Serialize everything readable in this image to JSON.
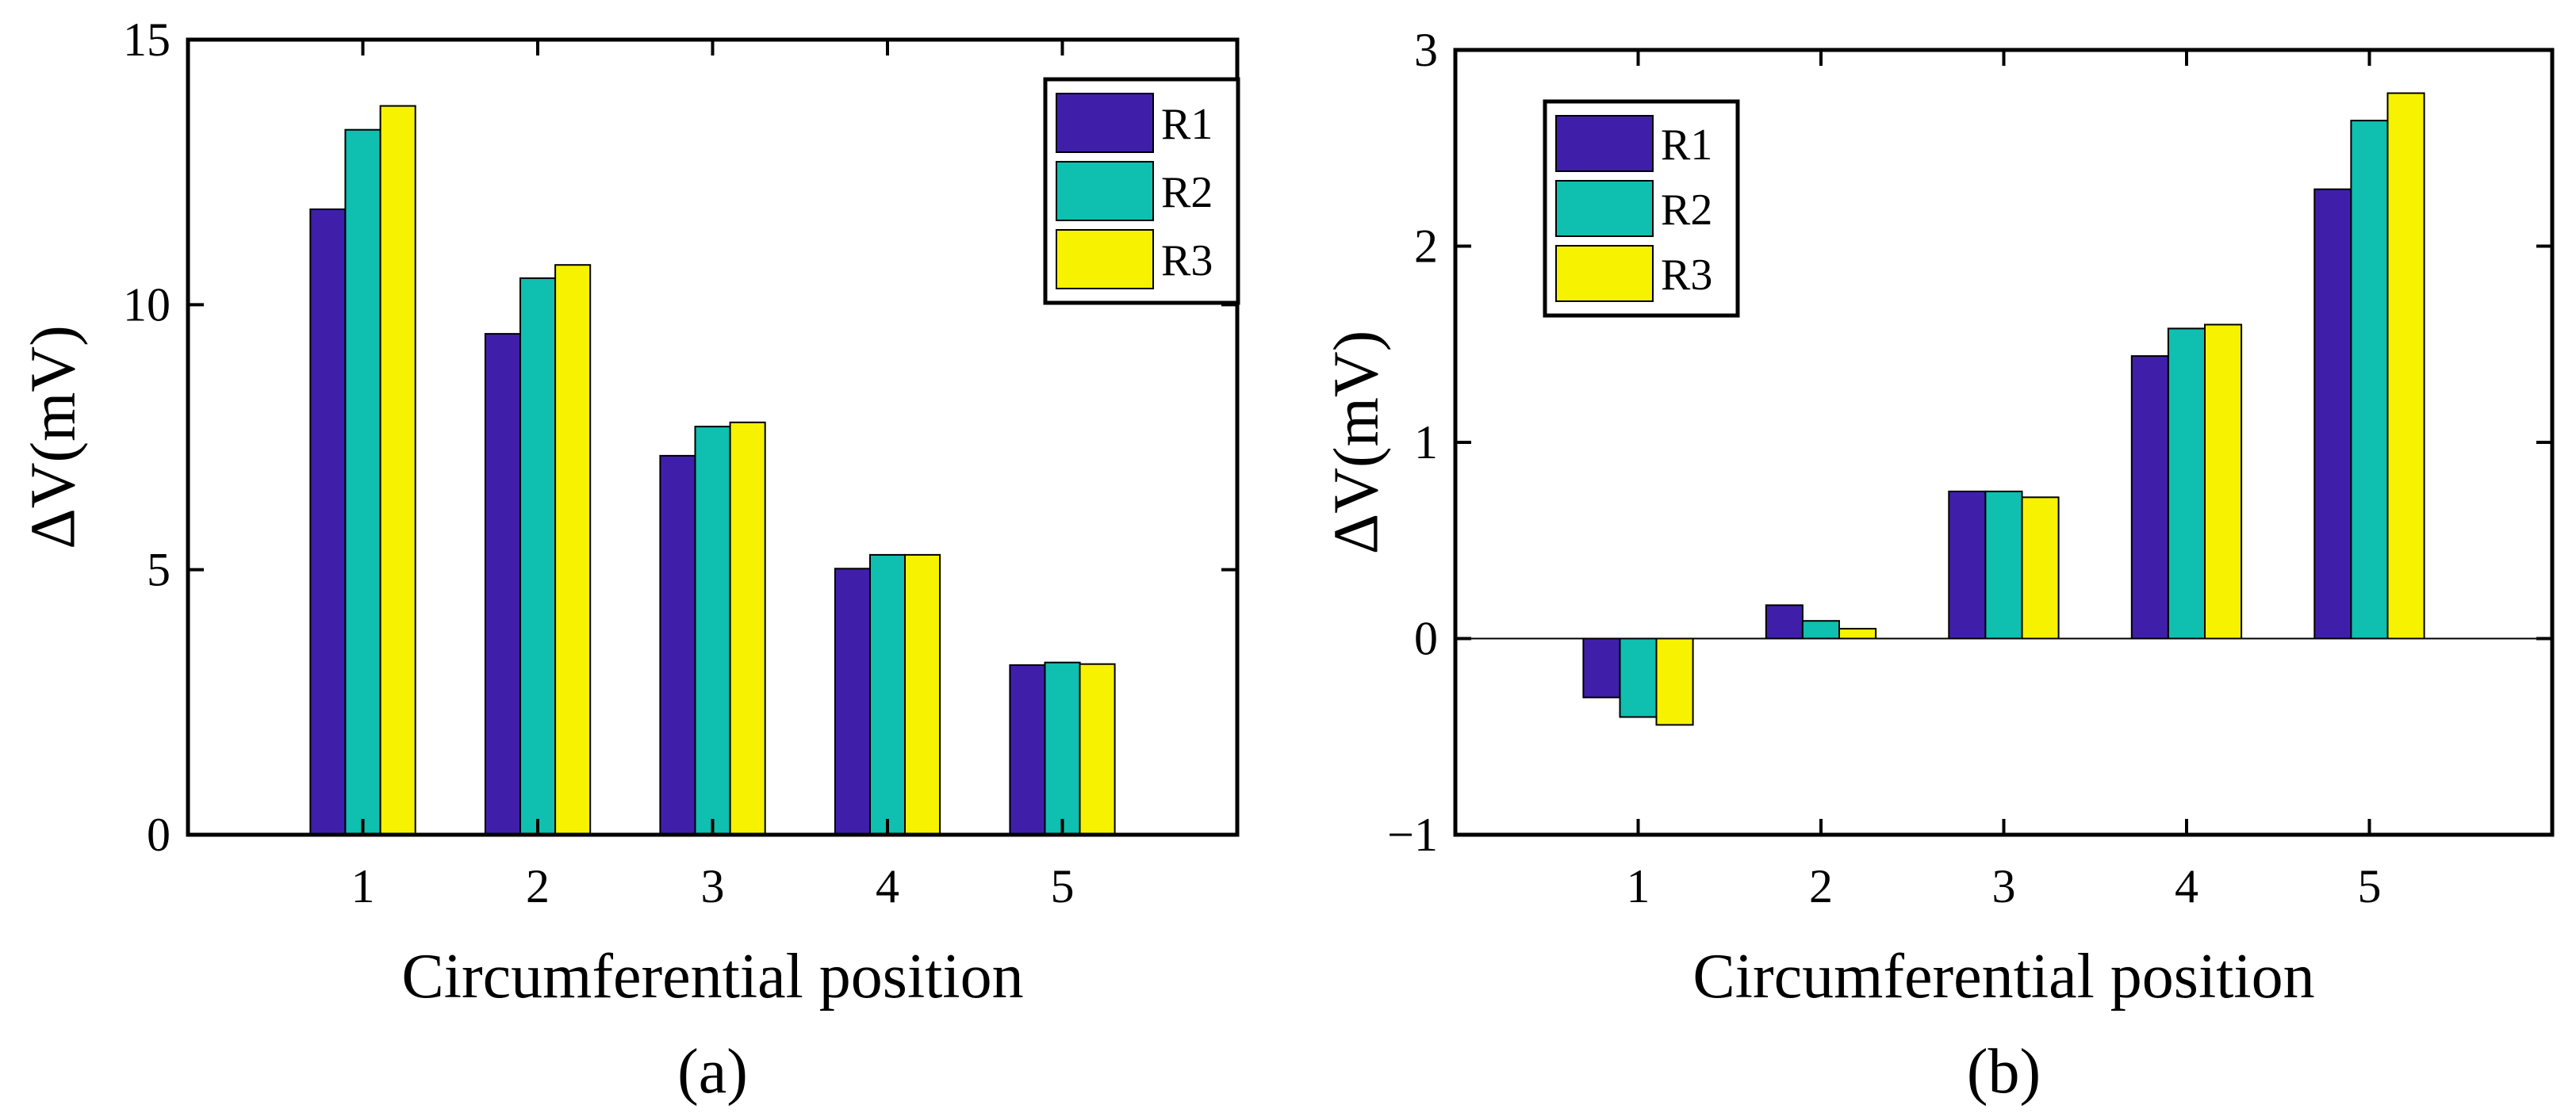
{
  "chart_data": [
    {
      "type": "bar",
      "panel_label": "(a)",
      "xlabel": "Circumferential position",
      "ylabel": "ΔV(mV)",
      "categories": [
        "1",
        "2",
        "3",
        "4",
        "5"
      ],
      "series": [
        {
          "name": "R1",
          "color": "#3F1FAA",
          "values": [
            11.8,
            9.45,
            7.15,
            5.02,
            3.2
          ]
        },
        {
          "name": "R2",
          "color": "#0FBFB0",
          "values": [
            13.3,
            10.5,
            7.7,
            5.28,
            3.25
          ]
        },
        {
          "name": "R3",
          "color": "#F7F200",
          "values": [
            13.75,
            10.75,
            7.78,
            5.28,
            3.22
          ]
        }
      ],
      "ylim": [
        0,
        15
      ],
      "yticks": [
        0,
        5,
        10,
        15
      ],
      "ytick_labels": [
        "0",
        "5",
        "10",
        "15"
      ],
      "xlim": [
        0.0,
        6.0
      ],
      "legend_position": "top-right",
      "zero_line": false
    },
    {
      "type": "bar",
      "panel_label": "(b)",
      "xlabel": "Circumferential position",
      "ylabel": "ΔV(mV)",
      "categories": [
        "1",
        "2",
        "3",
        "4",
        "5"
      ],
      "series": [
        {
          "name": "R1",
          "color": "#3F1FAA",
          "values": [
            -0.3,
            0.17,
            0.75,
            1.44,
            2.29
          ]
        },
        {
          "name": "R2",
          "color": "#0FBFB0",
          "values": [
            -0.4,
            0.09,
            0.75,
            1.58,
            2.64
          ]
        },
        {
          "name": "R3",
          "color": "#F7F200",
          "values": [
            -0.44,
            0.05,
            0.72,
            1.6,
            2.78
          ]
        }
      ],
      "ylim": [
        -1,
        3
      ],
      "yticks": [
        -1,
        0,
        1,
        2,
        3
      ],
      "ytick_labels": [
        "−1",
        "0",
        "1",
        "2",
        "3"
      ],
      "xlim": [
        0.0,
        6.0
      ],
      "legend_position": "top-left",
      "zero_line": true
    }
  ]
}
